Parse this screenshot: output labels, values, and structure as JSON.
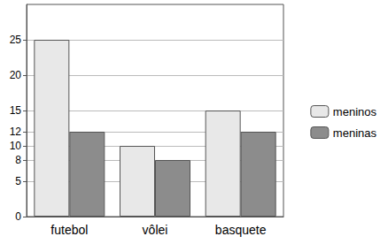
{
  "chart_data": {
    "type": "bar",
    "categories": [
      "futebol",
      "vôlei",
      "basquete"
    ],
    "series": [
      {
        "name": "meninos",
        "color": "#e8e8e8",
        "values": [
          25,
          10,
          15
        ]
      },
      {
        "name": "meninas",
        "color": "#8c8c8c",
        "values": [
          12,
          8,
          12
        ]
      }
    ],
    "ylim": [
      0,
      30
    ],
    "yticks": [
      0,
      5,
      8,
      10,
      12,
      15,
      20,
      25
    ],
    "grid": true,
    "legend": "right"
  }
}
